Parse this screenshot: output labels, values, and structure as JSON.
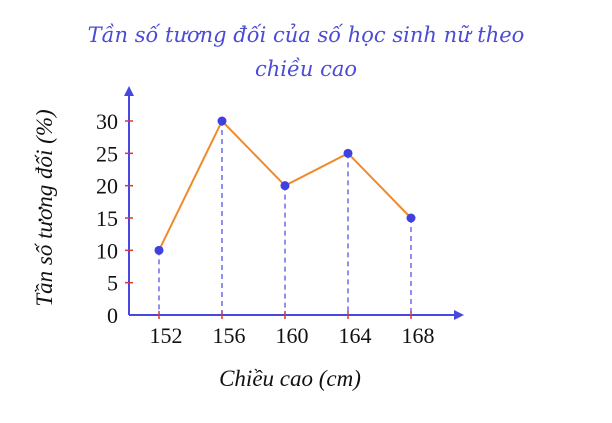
{
  "chart_data": {
    "type": "line",
    "title_line1": "Tần số tương đối của số học sinh nữ theo",
    "title_line2": "chiều cao",
    "xlabel": "Chiều cao (cm)",
    "ylabel": "Tần số tương đối (%)",
    "x": [
      152,
      156,
      160,
      164,
      168
    ],
    "y": [
      10,
      30,
      20,
      25,
      15
    ],
    "xticks": [
      "152",
      "156",
      "160",
      "164",
      "168"
    ],
    "yticks": [
      0,
      5,
      10,
      15,
      20,
      25,
      30
    ],
    "ylim": [
      0,
      30
    ],
    "grid": false,
    "drop_lines": true,
    "colors": {
      "line": "#f08a28",
      "point": "#4040e0",
      "axis": "#4848e0",
      "drop_line": "#4848e0",
      "title": "#4b4bd6"
    }
  }
}
